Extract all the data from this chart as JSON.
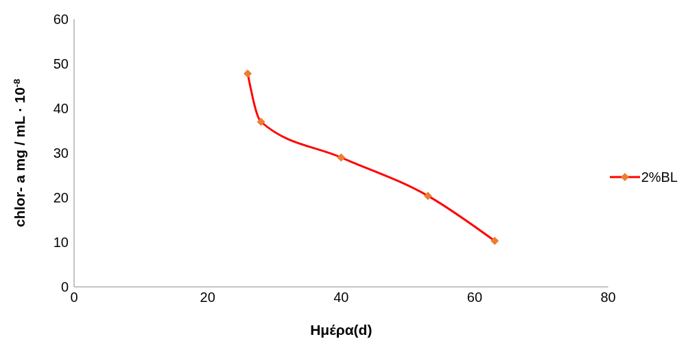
{
  "chart_data": {
    "type": "line",
    "xlabel": "Ημέρα(d)",
    "ylabel": "chlor- a mg / mL · 10$^{-8}$",
    "x": [
      26,
      28,
      40,
      53,
      63
    ],
    "series": [
      {
        "name": "2%BL",
        "color": "#ff0000",
        "colors": [
          "#ed7d31",
          "#ed7d31",
          "#ed7d31",
          "#ed7d31",
          "#ed7d31"
        ],
        "values": [
          47.8,
          37,
          29,
          20.4,
          10.3
        ]
      }
    ],
    "xlim": [
      0,
      80
    ],
    "xticks": [
      0,
      20,
      40,
      60,
      80
    ],
    "ylim": [
      0,
      60
    ],
    "yticks": [
      0,
      10,
      20,
      30,
      40,
      50,
      60
    ],
    "grid": false,
    "legend": "right",
    "marker": "diamond",
    "line_style": "solid"
  }
}
